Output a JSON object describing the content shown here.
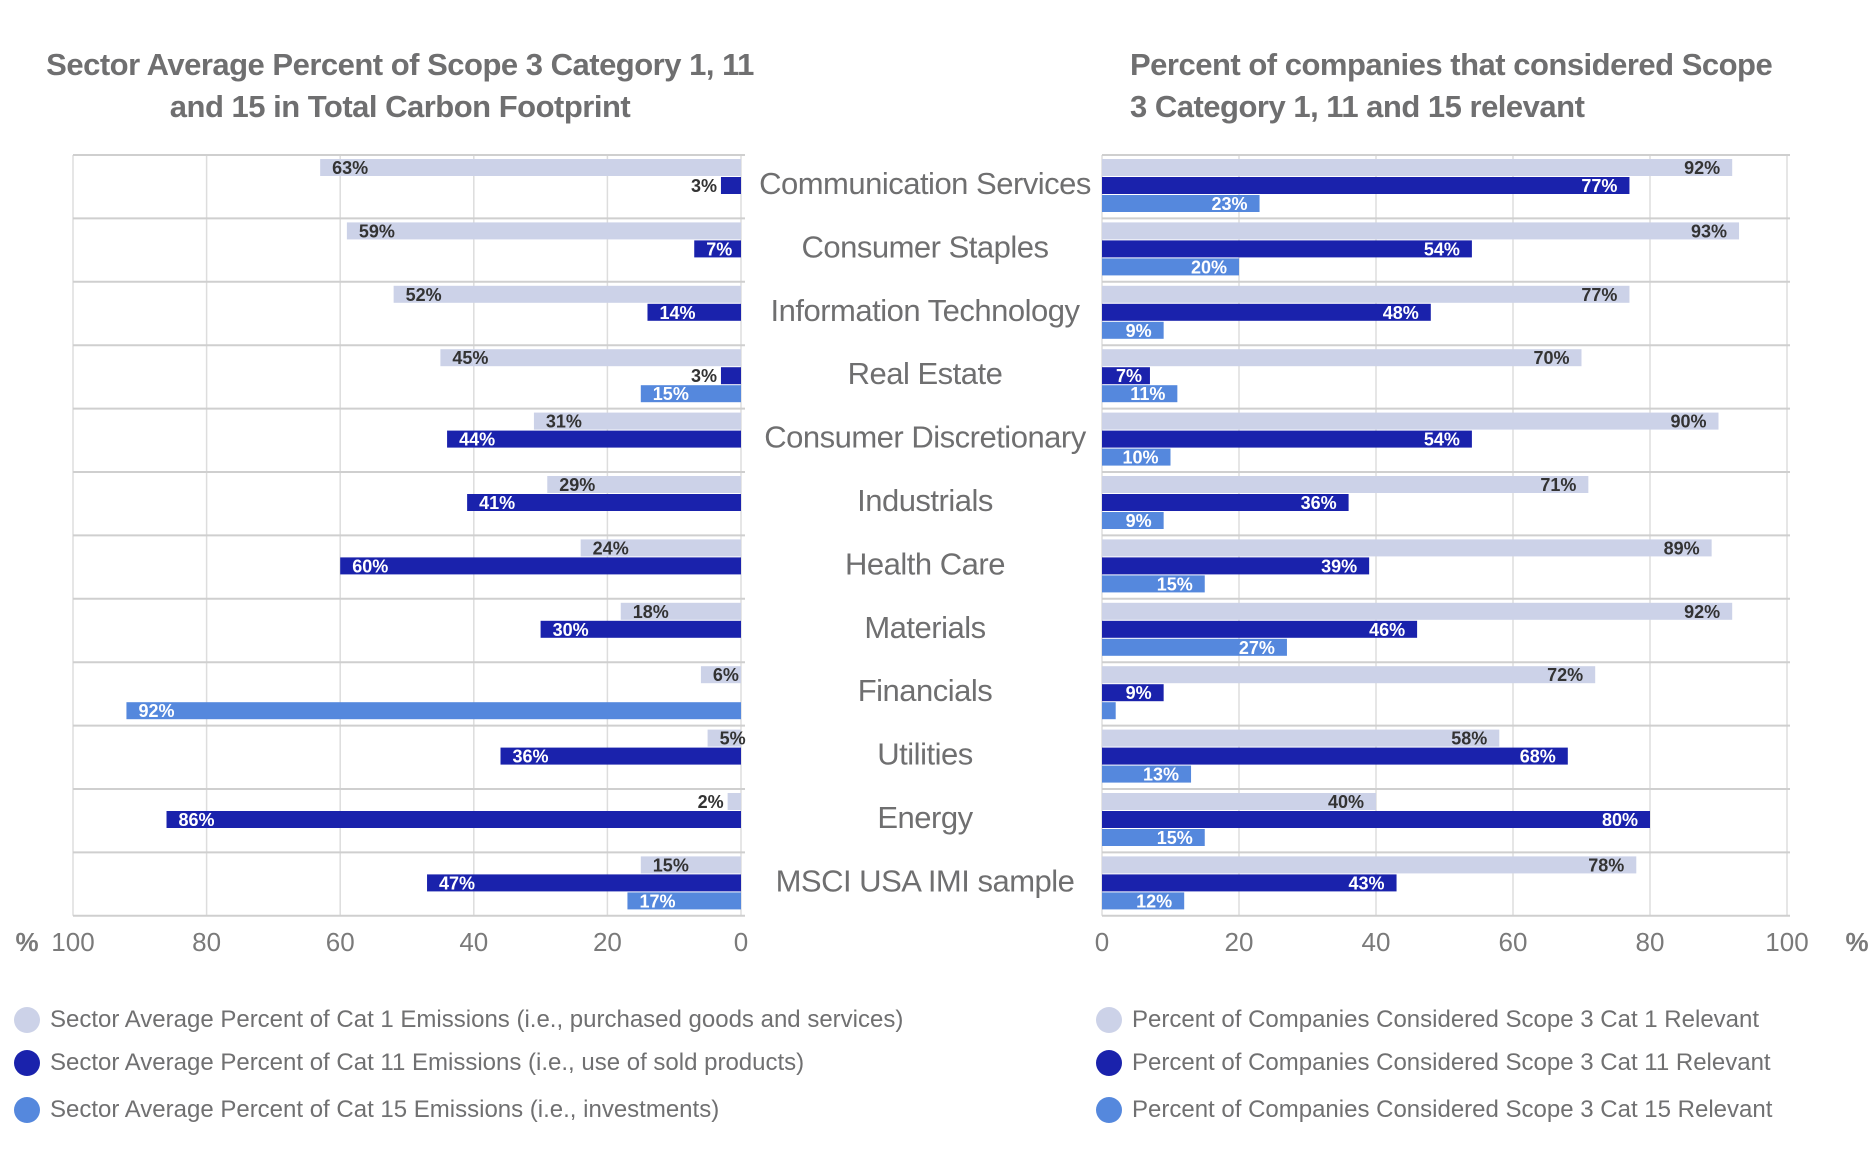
{
  "colors": {
    "cat1": "#ccd2e8",
    "cat11": "#1a22ac",
    "cat15": "#5588dd",
    "text_dark": "#333333",
    "text_light": "#ffffff",
    "axis_text": "#7a7a7a",
    "category_text": "#6f6f70",
    "grid": "#dddddd"
  },
  "chart_data": [
    {
      "type": "bar",
      "orientation": "horizontal",
      "direction": "right-to-left",
      "title": "Sector Average Percent of Scope 3 Category 1, 11 and 15 in Total Carbon Footprint",
      "xlabel": "%",
      "xlim": [
        0,
        100
      ],
      "xticks": [
        "100",
        "80",
        "60",
        "40",
        "20",
        "0"
      ],
      "grid": true,
      "legend_position": "bottom-left",
      "categories": [
        "Communication Services",
        "Consumer Staples",
        "Information Technology",
        "Real Estate",
        "Consumer Discretionary",
        "Industrials",
        "Health Care",
        "Materials",
        "Financials",
        "Utilities",
        "Energy",
        "MSCI USA IMI sample"
      ],
      "series": [
        {
          "name": "Sector Average Percent of Cat 1 Emissions (i.e., purchased goods and services)",
          "key": "cat1",
          "values": [
            63,
            59,
            52,
            45,
            31,
            29,
            24,
            18,
            6,
            5,
            2,
            15
          ],
          "labels": [
            "63%",
            "59%",
            "52%",
            "45%",
            "31%",
            "29%",
            "24%",
            "18%",
            "6%",
            "5%",
            "2%",
            "15%"
          ]
        },
        {
          "name": "Sector Average Percent of Cat 11 Emissions (i.e., use of sold products)",
          "key": "cat11",
          "values": [
            3,
            7,
            14,
            3,
            44,
            41,
            60,
            30,
            0,
            36,
            86,
            47
          ],
          "labels": [
            "3%",
            "7%",
            "14%",
            "3%",
            "44%",
            "41%",
            "60%",
            "30%",
            "",
            "36%",
            "86%",
            "47%"
          ]
        },
        {
          "name": "Sector Average Percent of Cat 15 Emissions (i.e., investments)",
          "key": "cat15",
          "values": [
            0,
            0,
            0,
            15,
            0,
            0,
            0,
            0,
            92,
            0,
            0,
            17
          ],
          "labels": [
            "",
            "",
            "",
            "15%",
            "",
            "",
            "",
            "",
            "92%",
            "",
            "",
            "17%"
          ]
        }
      ]
    },
    {
      "type": "bar",
      "orientation": "horizontal",
      "direction": "left-to-right",
      "title": "Percent of companies that considered Scope 3 Category 1, 11 and 15 relevant",
      "xlabel": "%",
      "xlim": [
        0,
        100
      ],
      "xticks": [
        "0",
        "20",
        "40",
        "60",
        "80",
        "100"
      ],
      "grid": true,
      "legend_position": "bottom-right",
      "categories": [
        "Communication Services",
        "Consumer Staples",
        "Information Technology",
        "Real Estate",
        "Consumer Discretionary",
        "Industrials",
        "Health Care",
        "Materials",
        "Financials",
        "Utilities",
        "Energy",
        "MSCI USA IMI sample"
      ],
      "series": [
        {
          "name": "Percent of Companies Considered Scope 3 Cat 1 Relevant",
          "key": "cat1",
          "values": [
            92,
            93,
            77,
            70,
            90,
            71,
            89,
            92,
            72,
            58,
            40,
            78
          ],
          "labels": [
            "92%",
            "93%",
            "77%",
            "70%",
            "90%",
            "71%",
            "89%",
            "92%",
            "72%",
            "58%",
            "40%",
            "78%"
          ]
        },
        {
          "name": "Percent of Companies Considered Scope 3 Cat 11 Relevant",
          "key": "cat11",
          "values": [
            77,
            54,
            48,
            7,
            54,
            36,
            39,
            46,
            9,
            68,
            80,
            43
          ],
          "labels": [
            "77%",
            "54%",
            "48%",
            "7%",
            "54%",
            "36%",
            "39%",
            "46%",
            "9%",
            "68%",
            "80%",
            "43%"
          ]
        },
        {
          "name": "Percent of Companies Considered Scope 3 Cat 15 Relevant",
          "key": "cat15",
          "values": [
            23,
            20,
            9,
            11,
            10,
            9,
            15,
            27,
            2,
            13,
            15,
            12
          ],
          "labels": [
            "23%",
            "20%",
            "9%",
            "11%",
            "10%",
            "9%",
            "15%",
            "27%",
            "",
            "13%",
            "15%",
            "12%"
          ]
        }
      ]
    }
  ],
  "titles": {
    "left": "Sector Average Percent of Scope 3 Category 1, 11 and 15 in Total Carbon Footprint",
    "right": "Percent of companies that considered Scope 3 Category 1, 11 and 15 relevant"
  },
  "legend": {
    "left": [
      "Sector Average Percent of Cat 1 Emissions (i.e., purchased goods and services)",
      "Sector Average Percent of Cat 11 Emissions (i.e., use of sold products)",
      "Sector Average Percent of Cat 15 Emissions (i.e., investments)"
    ],
    "right": [
      "Percent of Companies Considered Scope 3 Cat 1 Relevant",
      "Percent of Companies Considered Scope 3 Cat 11 Relevant",
      "Percent of Companies Considered Scope 3 Cat 15 Relevant"
    ]
  }
}
